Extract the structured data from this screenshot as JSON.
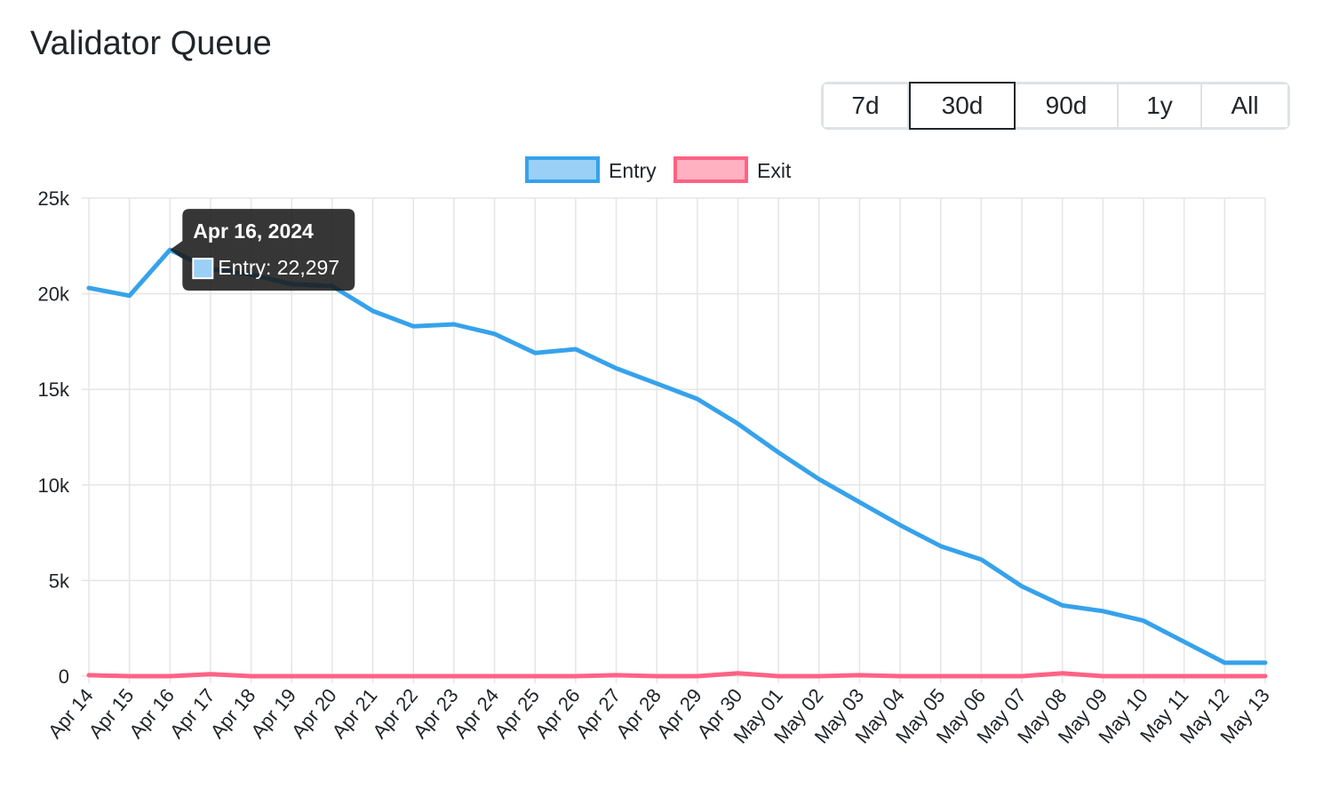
{
  "page": {
    "title": "Validator Queue"
  },
  "range_selector": {
    "options": [
      "7d",
      "30d",
      "90d",
      "1y",
      "All"
    ],
    "selected": "30d"
  },
  "colors": {
    "entry_line": "#36a2eb",
    "entry_fill": "#9ad0f5",
    "exit_line": "#ff6384",
    "exit_fill": "#ffb1c1",
    "grid": "#e5e5e5",
    "tooltip_bg": "#1a1a1a"
  },
  "tooltip": {
    "title": "Apr 16, 2024",
    "body": "Entry: 22,297",
    "point_label": "Apr 16"
  },
  "chart_data": {
    "type": "line",
    "categories": [
      "Apr 14",
      "Apr 15",
      "Apr 16",
      "Apr 17",
      "Apr 18",
      "Apr 19",
      "Apr 20",
      "Apr 21",
      "Apr 22",
      "Apr 23",
      "Apr 24",
      "Apr 25",
      "Apr 26",
      "Apr 27",
      "Apr 28",
      "Apr 29",
      "Apr 30",
      "May 01",
      "May 02",
      "May 03",
      "May 04",
      "May 05",
      "May 06",
      "May 07",
      "May 08",
      "May 09",
      "May 10",
      "May 11",
      "May 12",
      "May 13"
    ],
    "series": [
      {
        "name": "Entry",
        "values": [
          20300,
          19900,
          22297,
          21300,
          21000,
          20500,
          20400,
          19100,
          18300,
          18400,
          17900,
          16900,
          17100,
          16100,
          15300,
          14500,
          13200,
          11700,
          10300,
          9100,
          7900,
          6800,
          6100,
          4700,
          3700,
          3400,
          2900,
          1800,
          700,
          700
        ]
      },
      {
        "name": "Exit",
        "values": [
          50,
          0,
          0,
          100,
          0,
          0,
          0,
          0,
          0,
          0,
          0,
          0,
          0,
          50,
          0,
          0,
          150,
          0,
          0,
          50,
          0,
          0,
          0,
          0,
          150,
          0,
          0,
          0,
          0,
          0
        ]
      }
    ],
    "ylim": [
      0,
      25000
    ],
    "yticks": [
      0,
      5000,
      10000,
      15000,
      20000,
      25000
    ],
    "ytick_labels": [
      "0",
      "5k",
      "10k",
      "15k",
      "20k",
      "25k"
    ],
    "legend_position": "top-center",
    "grid": true
  }
}
